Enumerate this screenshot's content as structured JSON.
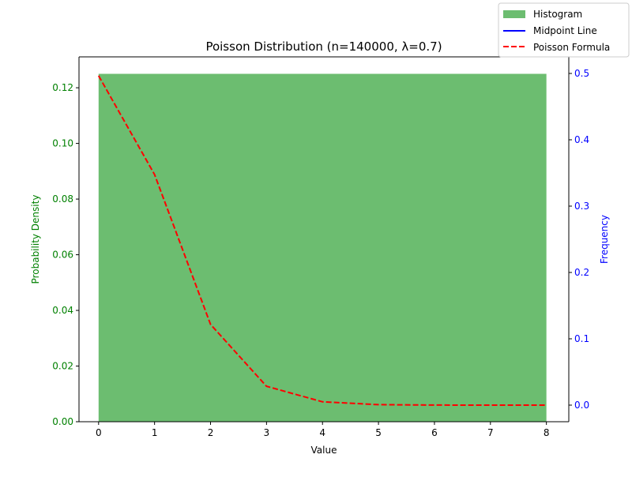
{
  "chart_data": {
    "type": "bar",
    "title": "Poisson Distribution (n=140000, λ=0.7)",
    "xlabel": "Value",
    "ylabel_left": "Probability Density",
    "ylabel_right": "Frequency",
    "xlim": [
      -0.35,
      8.4
    ],
    "xticks": [
      0,
      1,
      2,
      3,
      4,
      5,
      6,
      7,
      8
    ],
    "ylim_left": [
      0,
      0.1311
    ],
    "yticks_left": [
      "0.00",
      "0.02",
      "0.04",
      "0.06",
      "0.08",
      "0.10",
      "0.12"
    ],
    "ylim_right": [
      -0.025,
      0.525
    ],
    "yticks_right": [
      "0.0",
      "0.1",
      "0.2",
      "0.3",
      "0.4",
      "0.5"
    ],
    "grid": false,
    "legend_position": "top-right",
    "histogram": {
      "name": "Histogram",
      "color": "#4caf50",
      "opacity": 0.82,
      "bins": [
        {
          "x0": 0,
          "x1": 8,
          "density": 0.125
        }
      ]
    },
    "midpoint_line": {
      "name": "Midpoint Line",
      "color": "#0000ff",
      "x": [],
      "y": []
    },
    "poisson_formula": {
      "name": "Poisson Formula",
      "color": "#ff0000",
      "x": [
        0,
        1,
        2,
        3,
        4,
        5,
        6,
        7,
        8
      ],
      "y": [
        0.4966,
        0.3476,
        0.1217,
        0.0284,
        0.005,
        0.0007,
        0.0001,
        0.0,
        0.0
      ]
    },
    "axis_colors": {
      "left": "#008000",
      "right": "#0000ff",
      "x": "#000000"
    }
  }
}
